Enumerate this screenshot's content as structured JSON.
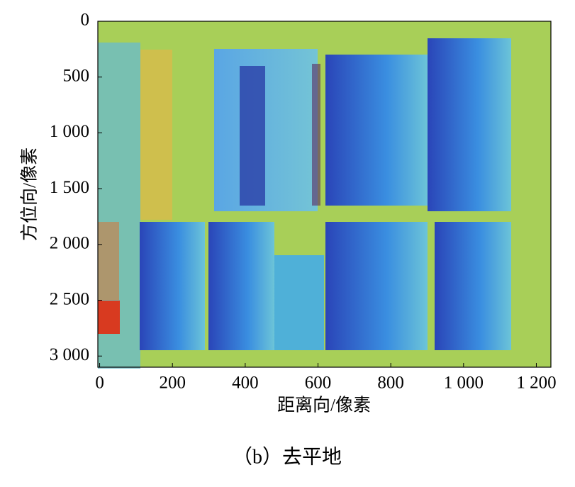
{
  "chart_data": {
    "type": "image",
    "xlabel": "距离向/像素",
    "ylabel": "方位向/像素",
    "caption": "（b）去平地",
    "xlim": [
      -5,
      1240
    ],
    "ylim": [
      0,
      3100
    ],
    "xticks": [
      0,
      200,
      400,
      600,
      800,
      {
        "value": 1000,
        "label": "1 000"
      },
      {
        "value": 1200,
        "label": "1 200"
      }
    ],
    "yticks": [
      0,
      500,
      {
        "value": 1000,
        "label": "1 000"
      },
      {
        "value": 1500,
        "label": "1 500"
      },
      {
        "value": 2000,
        "label": "2 000"
      },
      {
        "value": 2500,
        "label": "2 500"
      },
      {
        "value": 3000,
        "label": "3 000"
      }
    ]
  }
}
